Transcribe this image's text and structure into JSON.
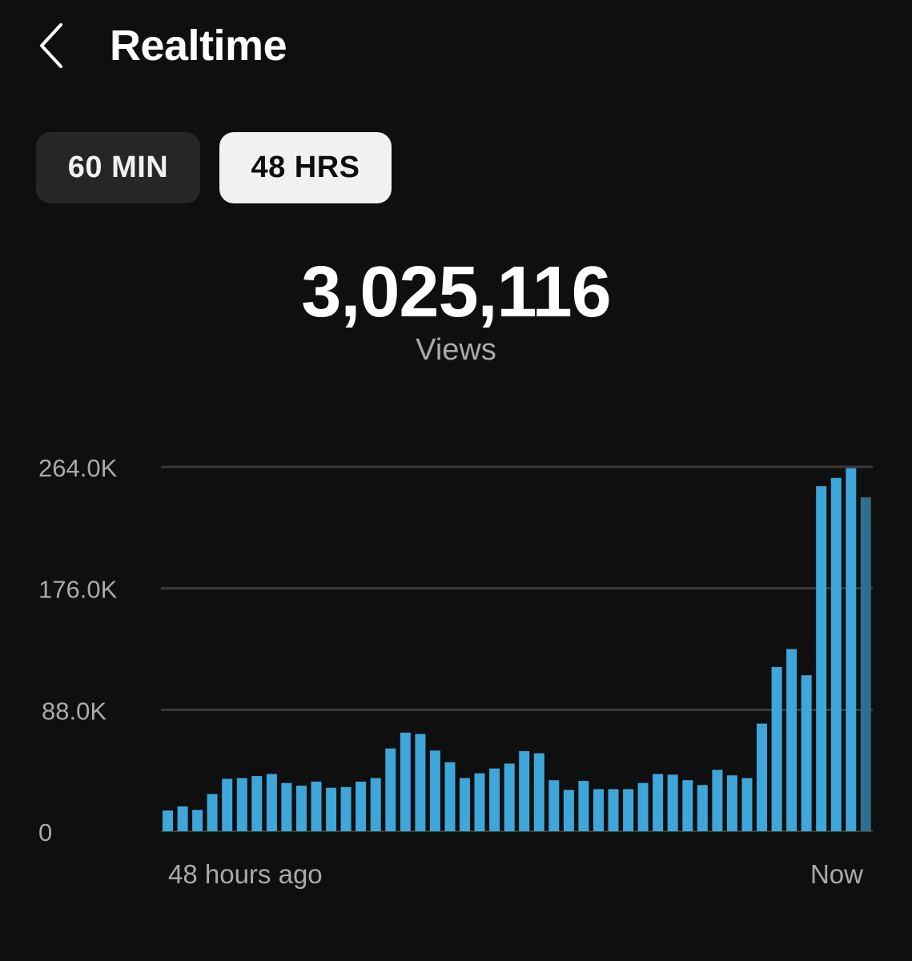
{
  "header": {
    "title": "Realtime"
  },
  "tabs": [
    {
      "label": "60 MIN",
      "selected": false
    },
    {
      "label": "48 HRS",
      "selected": true
    }
  ],
  "summary": {
    "value": "3,025,116",
    "label": "Views"
  },
  "colors": {
    "background": "#0f0f0f",
    "bar": "#3ea6d9",
    "bar_current": "#2e6f8f",
    "gridline": "#3a3a3a",
    "tab_selected_bg": "#f1f1f1",
    "tab_unselected_bg": "#262626"
  },
  "icons": {
    "back": "chevron-left-icon"
  },
  "chart_data": {
    "type": "bar",
    "title": "",
    "xlabel": "",
    "ylabel": "",
    "x_start_label": "48 hours ago",
    "x_end_label": "Now",
    "y_ticks": [
      {
        "value": 0,
        "label": "0"
      },
      {
        "value": 88000,
        "label": "88.0K"
      },
      {
        "value": 176000,
        "label": "176.0K"
      },
      {
        "value": 264000,
        "label": "264.0K"
      }
    ],
    "ylim": [
      0,
      264000
    ],
    "grid": true,
    "series": [
      {
        "values": [
          15000,
          18000,
          15500,
          27000,
          38000,
          38500,
          40000,
          41500,
          35000,
          33000,
          36000,
          31500,
          32000,
          36000,
          38500,
          60000,
          71500,
          70500,
          58500,
          50000,
          38500,
          42000,
          45500,
          49000,
          58000,
          56500,
          37000,
          30000,
          36500,
          30500,
          30500,
          30500,
          35000,
          41500,
          41000,
          37000,
          33500,
          44500,
          40500,
          38500,
          78000,
          119000,
          132000,
          113000,
          250000,
          256000,
          263000,
          242000
        ],
        "last_bar_in_progress": true
      }
    ]
  }
}
